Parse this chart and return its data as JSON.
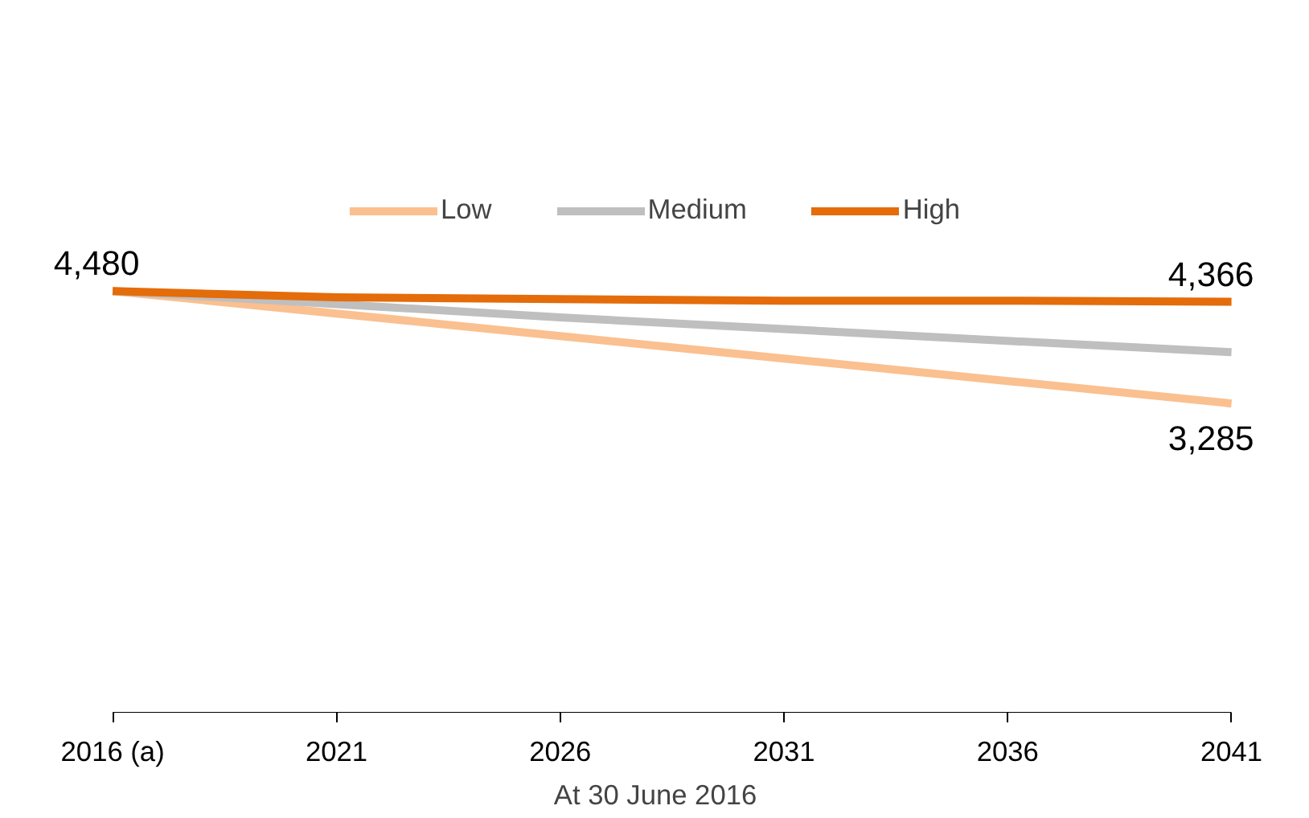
{
  "chart_data": {
    "type": "line",
    "xlabel": "At 30 June 2016",
    "categories": [
      "2016 (a)",
      "2021",
      "2026",
      "2031",
      "2036",
      "2041"
    ],
    "tick_labels": "x",
    "grid": false,
    "legend": "top",
    "marker": "none",
    "line_style": "solid",
    "series": [
      {
        "name": "Low",
        "color": "#fac090",
        "values": [
          4480,
          4241,
          4002,
          3763,
          3524,
          3285
        ],
        "value_labels": [
          null,
          null,
          null,
          null,
          null,
          "3,285"
        ]
      },
      {
        "name": "Medium",
        "color": "#bfbfbf",
        "values": [
          4480,
          4340,
          4200,
          4075,
          3950,
          3830
        ]
      },
      {
        "name": "High",
        "color": "#e46c0a",
        "values": [
          4480,
          4412,
          4394,
          4377,
          4377,
          4366
        ],
        "value_labels": [
          "4,480",
          null,
          null,
          null,
          null,
          "4,366"
        ]
      }
    ]
  }
}
